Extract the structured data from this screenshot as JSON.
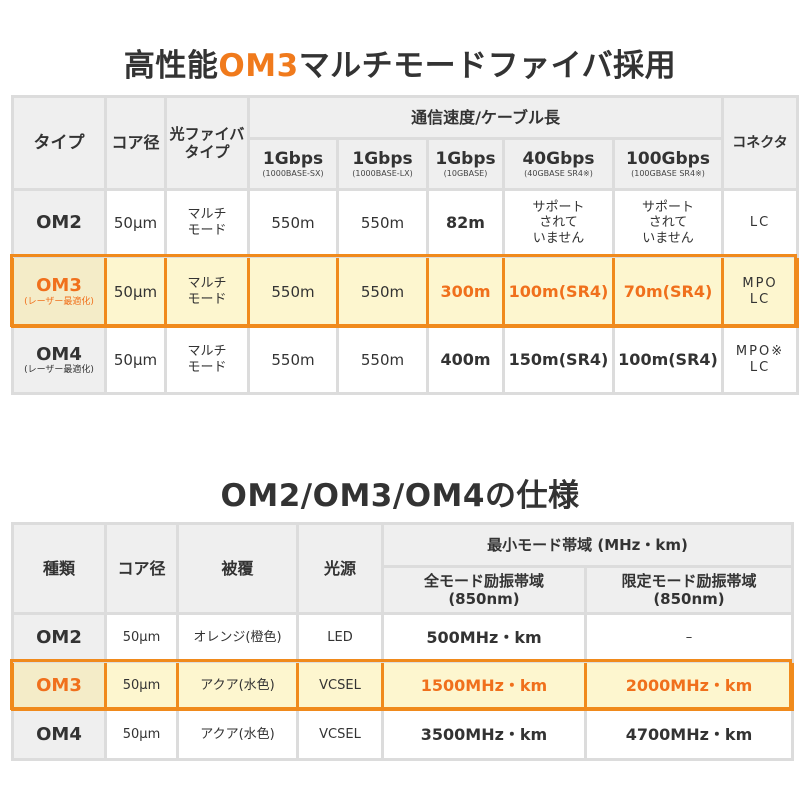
{
  "title1": {
    "pre": "高性能",
    "highlight": "OM3",
    "post": "マルチモードファイバ採用"
  },
  "table1": {
    "headers": {
      "type": "タイプ",
      "core": "コア径",
      "fiber_type": [
        "光ファイバ",
        "タイプ"
      ],
      "speed_group": "通信速度/ケーブル長",
      "connector": "コネクタ",
      "speeds": [
        {
          "speed": "1Gbps",
          "std": "(1000BASE-SX)"
        },
        {
          "speed": "1Gbps",
          "std": "(1000BASE-LX)"
        },
        {
          "speed": "1Gbps",
          "std": "(10GBASE)"
        },
        {
          "speed": "40Gbps",
          "std": "(40GBASE SR4※)"
        },
        {
          "speed": "100Gbps",
          "std": "(100GBASE SR4※)"
        }
      ]
    },
    "rows": [
      {
        "name": "OM2",
        "sub": "",
        "core": "50μm",
        "fiber": [
          "マルチ",
          "モード"
        ],
        "v1": "550m",
        "v2": "550m",
        "v3": "82m",
        "v4": [
          "サポート",
          "されて",
          "いません"
        ],
        "v5": [
          "サポート",
          "されて",
          "いません"
        ],
        "conn": [
          "LC",
          ""
        ]
      },
      {
        "name": "OM3",
        "sub": "(レーザー最適化)",
        "core": "50μm",
        "fiber": [
          "マルチ",
          "モード"
        ],
        "v1": "550m",
        "v2": "550m",
        "v3": "300m",
        "v4": [
          "100m(SR4)"
        ],
        "v5": [
          "70m(SR4)"
        ],
        "conn": [
          "MPO",
          "LC"
        ]
      },
      {
        "name": "OM4",
        "sub": "(レーザー最適化)",
        "core": "50μm",
        "fiber": [
          "マルチ",
          "モード"
        ],
        "v1": "550m",
        "v2": "550m",
        "v3": "400m",
        "v4": [
          "150m(SR4)"
        ],
        "v5": [
          "100m(SR4)"
        ],
        "conn": [
          "MPO※",
          "LC"
        ]
      }
    ]
  },
  "title2": "OM2/OM3/OM4の仕様",
  "table2": {
    "headers": {
      "kind": "種類",
      "core": "コア径",
      "coating": "被覆",
      "source": "光源",
      "band_group": "最小モード帯域 (MHz・km)",
      "full": [
        "全モード励振帯域",
        "(850nm)"
      ],
      "limited": [
        "限定モード励振帯域",
        "(850nm)"
      ]
    },
    "rows": [
      {
        "name": "OM2",
        "core": "50μm",
        "coating": "オレンジ(橙色)",
        "source": "LED",
        "full": "500MHz・km",
        "limited": "–"
      },
      {
        "name": "OM3",
        "core": "50μm",
        "coating": "アクア(水色)",
        "source": "VCSEL",
        "full": "1500MHz・km",
        "limited": "2000MHz・km"
      },
      {
        "name": "OM4",
        "core": "50μm",
        "coating": "アクア(水色)",
        "source": "VCSEL",
        "full": "3500MHz・km",
        "limited": "4700MHz・km"
      }
    ]
  },
  "colors": {
    "accent": "#f07a1c",
    "highlight_bg": "#fdf6cf",
    "header_bg": "#efefef",
    "border": "#dcdcdc"
  }
}
